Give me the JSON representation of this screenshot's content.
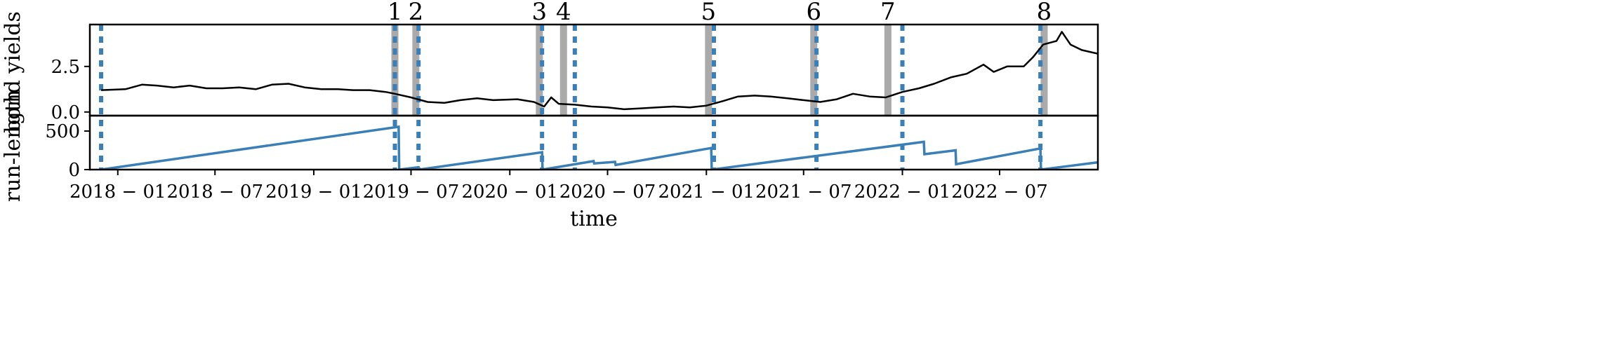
{
  "chart_data": [
    {
      "type": "line",
      "panel": "top",
      "ylabel": "bond yields",
      "xlabel": "",
      "ylim": [
        -0.2,
        4.8
      ],
      "yticks": [
        0.0,
        2.5
      ],
      "ytick_labels": [
        "0.0",
        "2.5"
      ],
      "grid": false,
      "series": [
        {
          "color": "#000000",
          "points": [
            [
              "2017-12-01",
              1.2
            ],
            [
              "2018-01-15",
              1.25
            ],
            [
              "2018-02-15",
              1.5
            ],
            [
              "2018-03-15",
              1.45
            ],
            [
              "2018-04-15",
              1.35
            ],
            [
              "2018-05-15",
              1.45
            ],
            [
              "2018-06-15",
              1.3
            ],
            [
              "2018-07-15",
              1.3
            ],
            [
              "2018-08-15",
              1.35
            ],
            [
              "2018-09-15",
              1.25
            ],
            [
              "2018-10-15",
              1.5
            ],
            [
              "2018-11-15",
              1.55
            ],
            [
              "2018-12-15",
              1.35
            ],
            [
              "2019-01-15",
              1.25
            ],
            [
              "2019-02-15",
              1.25
            ],
            [
              "2019-03-15",
              1.2
            ],
            [
              "2019-04-15",
              1.2
            ],
            [
              "2019-05-15",
              1.1
            ],
            [
              "2019-06-01",
              1.0
            ],
            [
              "2019-07-01",
              0.8
            ],
            [
              "2019-08-01",
              0.55
            ],
            [
              "2019-09-01",
              0.5
            ],
            [
              "2019-10-01",
              0.65
            ],
            [
              "2019-11-01",
              0.75
            ],
            [
              "2019-12-01",
              0.65
            ],
            [
              "2020-01-15",
              0.7
            ],
            [
              "2020-02-15",
              0.55
            ],
            [
              "2020-03-05",
              0.3
            ],
            [
              "2020-03-18",
              0.8
            ],
            [
              "2020-04-01",
              0.45
            ],
            [
              "2020-05-01",
              0.4
            ],
            [
              "2020-06-01",
              0.3
            ],
            [
              "2020-07-01",
              0.25
            ],
            [
              "2020-08-01",
              0.15
            ],
            [
              "2020-09-01",
              0.2
            ],
            [
              "2020-10-01",
              0.25
            ],
            [
              "2020-11-01",
              0.3
            ],
            [
              "2020-12-01",
              0.25
            ],
            [
              "2021-01-01",
              0.35
            ],
            [
              "2021-02-01",
              0.6
            ],
            [
              "2021-03-01",
              0.85
            ],
            [
              "2021-04-01",
              0.9
            ],
            [
              "2021-05-01",
              0.85
            ],
            [
              "2021-06-01",
              0.75
            ],
            [
              "2021-07-01",
              0.65
            ],
            [
              "2021-08-01",
              0.55
            ],
            [
              "2021-09-01",
              0.7
            ],
            [
              "2021-10-01",
              1.0
            ],
            [
              "2021-11-01",
              0.85
            ],
            [
              "2021-12-01",
              0.8
            ],
            [
              "2022-01-01",
              1.1
            ],
            [
              "2022-02-01",
              1.3
            ],
            [
              "2022-03-01",
              1.55
            ],
            [
              "2022-04-01",
              1.9
            ],
            [
              "2022-05-01",
              2.1
            ],
            [
              "2022-06-01",
              2.6
            ],
            [
              "2022-06-20",
              2.2
            ],
            [
              "2022-07-15",
              2.5
            ],
            [
              "2022-08-15",
              2.5
            ],
            [
              "2022-09-01",
              3.0
            ],
            [
              "2022-09-20",
              3.7
            ],
            [
              "2022-10-15",
              3.9
            ],
            [
              "2022-10-25",
              4.4
            ],
            [
              "2022-11-10",
              3.7
            ],
            [
              "2022-12-01",
              3.4
            ],
            [
              "2022-12-31",
              3.2
            ]
          ]
        }
      ]
    },
    {
      "type": "line",
      "panel": "bottom",
      "ylabel": "run-length",
      "xlabel": "time",
      "ylim": [
        0,
        700
      ],
      "yticks": [
        0,
        500
      ],
      "ytick_labels": [
        "0",
        "500"
      ],
      "grid": false,
      "x_tick_labels": [
        "2018 − 01",
        "2018 − 07",
        "2019 − 01",
        "2019 − 07",
        "2020 − 01",
        "2020 − 07",
        "2021 − 01",
        "2021 − 07",
        "2022 − 01",
        "2022 − 07"
      ],
      "x_ticks": [
        "2018-01-01",
        "2018-07-01",
        "2019-01-01",
        "2019-07-01",
        "2020-01-01",
        "2020-07-01",
        "2021-01-01",
        "2021-07-01",
        "2022-01-01",
        "2022-07-01"
      ],
      "xlim": [
        "2017-11-10",
        "2022-12-31"
      ],
      "series": [
        {
          "color": "#3a7fb8",
          "points": [
            [
              "2017-12-01",
              0
            ],
            [
              "2019-06-08",
              555
            ],
            [
              "2019-06-09",
              0
            ],
            [
              "2019-07-15",
              30
            ],
            [
              "2019-07-16",
              0
            ],
            [
              "2020-03-01",
              225
            ],
            [
              "2020-03-02",
              0
            ],
            [
              "2020-06-05",
              110
            ],
            [
              "2020-06-06",
              80
            ],
            [
              "2020-07-15",
              100
            ],
            [
              "2020-07-16",
              60
            ],
            [
              "2021-01-10",
              280
            ],
            [
              "2021-01-11",
              0
            ],
            [
              "2022-02-10",
              360
            ],
            [
              "2022-02-11",
              200
            ],
            [
              "2022-04-10",
              250
            ],
            [
              "2022-04-11",
              70
            ],
            [
              "2022-09-15",
              275
            ],
            [
              "2022-09-16",
              0
            ],
            [
              "2022-12-31",
              95
            ]
          ]
        }
      ]
    }
  ],
  "events": {
    "labels": [
      "1",
      "2",
      "3",
      "4",
      "5",
      "6",
      "7",
      "8"
    ],
    "gray_band_dates": [
      "2019-06-01",
      "2019-07-10",
      "2020-02-25",
      "2020-04-10",
      "2021-01-05",
      "2021-07-20",
      "2021-12-05",
      "2022-09-22"
    ],
    "dashed_line_dates": [
      "2017-12-01",
      "2019-06-01",
      "2019-07-15",
      "2020-03-01",
      "2020-05-01",
      "2021-01-15",
      "2021-07-25",
      "2022-01-01",
      "2022-09-15"
    ],
    "band_color": "#aaaaaa",
    "dashed_color": "#3a7fb8"
  }
}
